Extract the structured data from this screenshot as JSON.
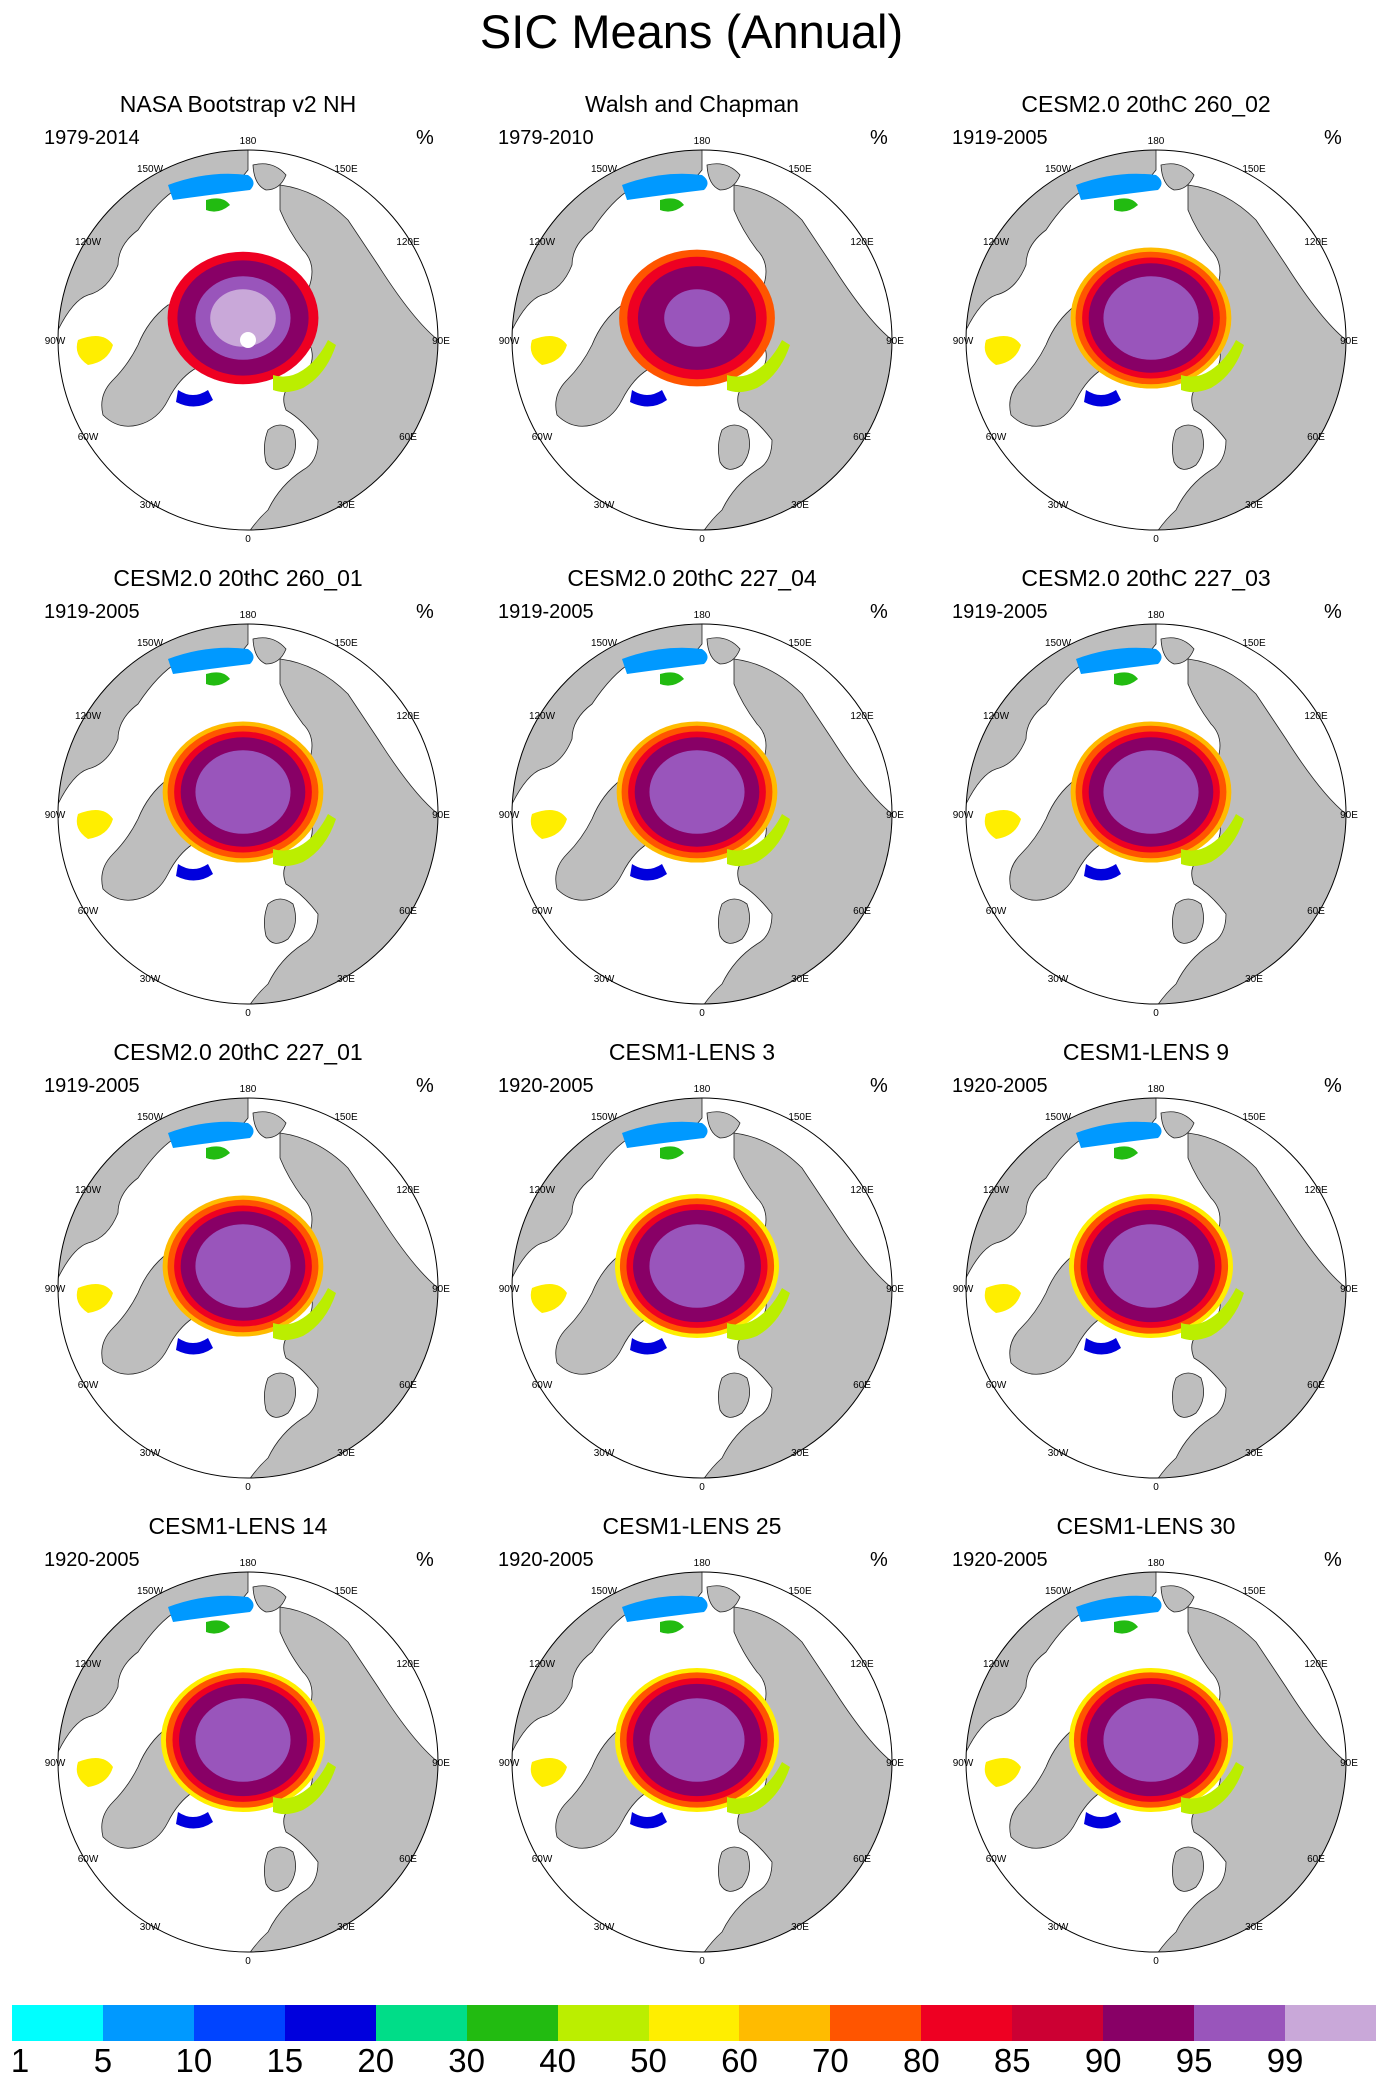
{
  "title": "SIC Means (Annual)",
  "unit": "%",
  "longitude_labels": [
    "180",
    "150E",
    "120E",
    "90E",
    "60E",
    "30E",
    "0",
    "30W",
    "60W",
    "90W",
    "120W",
    "150W"
  ],
  "colors": {
    "land": "#bebebe",
    "ocean": "#ffffff",
    "outline": "#000000"
  },
  "colorbar": {
    "levels": [
      "1",
      "5",
      "10",
      "15",
      "20",
      "30",
      "40",
      "50",
      "60",
      "70",
      "80",
      "85",
      "90",
      "95",
      "99"
    ],
    "colors": [
      "#00ffff",
      "#0099ff",
      "#0044ff",
      "#0000dd",
      "#00dd88",
      "#22bb11",
      "#bbee00",
      "#ffee00",
      "#ffbb00",
      "#ff5500",
      "#ee0022",
      "#cc0033",
      "#880066",
      "#9955bb",
      "#c9a8d9"
    ]
  },
  "panels": [
    {
      "title": "NASA Bootstrap v2 NH",
      "period": "1979-2014",
      "style": "obs1"
    },
    {
      "title": "Walsh and Chapman",
      "period": "1979-2010",
      "style": "obs2"
    },
    {
      "title": "CESM2.0 20thC 260_02",
      "period": "1919-2005",
      "style": "model"
    },
    {
      "title": "CESM2.0 20thC 260_01",
      "period": "1919-2005",
      "style": "model"
    },
    {
      "title": "CESM2.0 20thC 227_04",
      "period": "1919-2005",
      "style": "model"
    },
    {
      "title": "CESM2.0 20thC 227_03",
      "period": "1919-2005",
      "style": "model"
    },
    {
      "title": "CESM2.0 20thC 227_01",
      "period": "1919-2005",
      "style": "model"
    },
    {
      "title": "CESM1-LENS 3",
      "period": "1920-2005",
      "style": "lens"
    },
    {
      "title": "CESM1-LENS 9",
      "period": "1920-2005",
      "style": "lens"
    },
    {
      "title": "CESM1-LENS 14",
      "period": "1920-2005",
      "style": "lens"
    },
    {
      "title": "CESM1-LENS 25",
      "period": "1920-2005",
      "style": "lens"
    },
    {
      "title": "CESM1-LENS 30",
      "period": "1920-2005",
      "style": "lens"
    }
  ]
}
